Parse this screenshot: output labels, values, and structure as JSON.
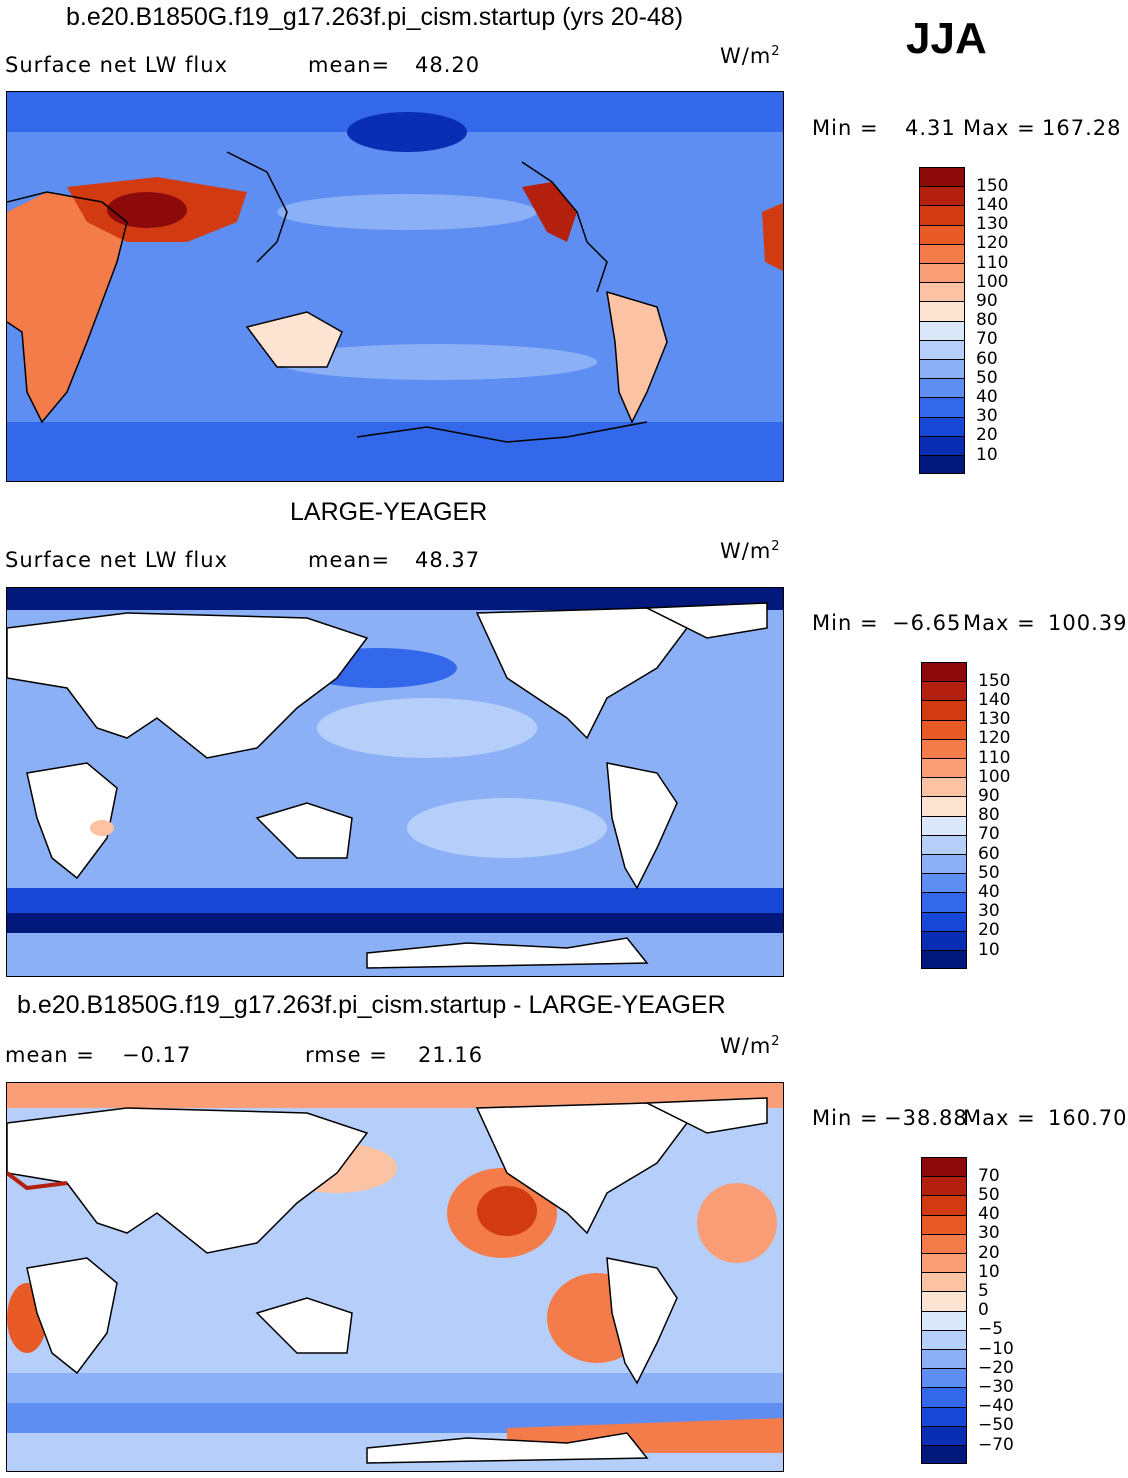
{
  "season": "JJA",
  "panels": [
    {
      "title": "b.e20.B1850G.f19_g17.263f.pi_cism.startup (yrs 20-48)",
      "stat_left_label": "Surface net LW flux",
      "stat_right_label": "mean=",
      "stat_right_value": "48.20",
      "units_base": "W/m",
      "units_exp": "2",
      "min_label": "Min =",
      "min_value": "4.31",
      "max_label": "Max =",
      "max_value": "167.28",
      "colorbar": {
        "labels": [
          "150",
          "140",
          "130",
          "120",
          "110",
          "100",
          "90",
          "80",
          "70",
          "60",
          "50",
          "40",
          "30",
          "20",
          "10"
        ],
        "colors": [
          "#8c0a0a",
          "#b3200e",
          "#d23a12",
          "#e85a26",
          "#f47c4a",
          "#f99e76",
          "#fcc2a4",
          "#fde3d2",
          "#dbe7fb",
          "#b6cffa",
          "#8cb0f6",
          "#5f8ef2",
          "#3468ea",
          "#1747d6",
          "#0a2eb3",
          "#03187c"
        ]
      },
      "map_colors": {
        "ocean": "#5f8ef2",
        "land": "#ffffff"
      }
    },
    {
      "title": "LARGE-YEAGER",
      "stat_left_label": "Surface net LW flux",
      "stat_right_label": "mean=",
      "stat_right_value": "48.37",
      "units_base": "W/m",
      "units_exp": "2",
      "min_label": "Min =",
      "min_value": "−6.65",
      "max_label": "Max =",
      "max_value": "100.39",
      "colorbar": {
        "labels": [
          "150",
          "140",
          "130",
          "120",
          "110",
          "100",
          "90",
          "80",
          "70",
          "60",
          "50",
          "40",
          "30",
          "20",
          "10"
        ],
        "colors": [
          "#8c0a0a",
          "#b3200e",
          "#d23a12",
          "#e85a26",
          "#f47c4a",
          "#f99e76",
          "#fcc2a4",
          "#fde3d2",
          "#dbe7fb",
          "#b6cffa",
          "#8cb0f6",
          "#5f8ef2",
          "#3468ea",
          "#1747d6",
          "#0a2eb3",
          "#03187c"
        ]
      },
      "map_colors": {
        "ocean": "#8cb0f6",
        "land": "#ffffff"
      }
    },
    {
      "title": "b.e20.B1850G.f19_g17.263f.pi_cism.startup - LARGE-YEAGER",
      "stat_left_label": "mean =",
      "stat_left_value": "−0.17",
      "stat_right_label": "rmse =",
      "stat_right_value": "21.16",
      "units_base": "W/m",
      "units_exp": "2",
      "min_label": "Min =",
      "min_value": "−38.88",
      "max_label": "Max =",
      "max_value": "160.70",
      "colorbar": {
        "labels": [
          "70",
          "50",
          "40",
          "30",
          "20",
          "10",
          "5",
          "0",
          "−5",
          "−10",
          "−20",
          "−30",
          "−40",
          "−50",
          "−70"
        ],
        "colors": [
          "#8c0a0a",
          "#b3200e",
          "#d23a12",
          "#e85a26",
          "#f47c4a",
          "#f99e76",
          "#fcc2a4",
          "#fde3d2",
          "#dbe7fb",
          "#b6cffa",
          "#8cb0f6",
          "#5f8ef2",
          "#3468ea",
          "#1747d6",
          "#0a2eb3",
          "#03187c"
        ]
      },
      "map_colors": {
        "ocean": "#b6cffa",
        "land": "#ffffff"
      }
    }
  ]
}
